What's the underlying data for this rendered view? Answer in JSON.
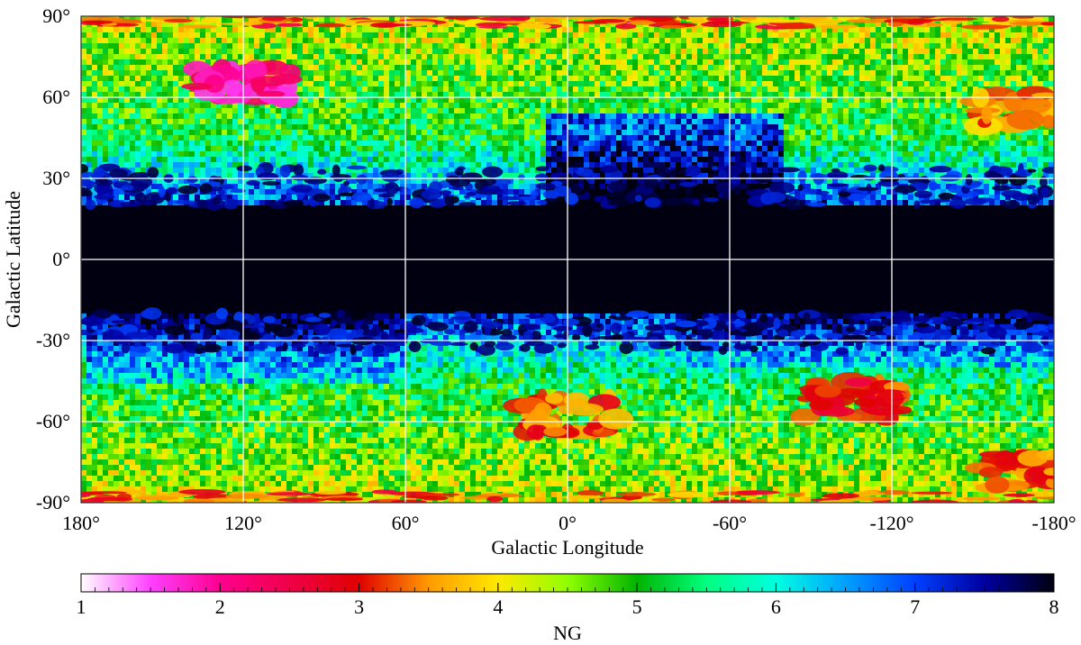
{
  "chart_data": {
    "type": "heatmap",
    "projection": "plate-carree",
    "title": "",
    "xlabel": "Galactic Longitude",
    "ylabel": "Galactic Latitude",
    "xlim": [
      180,
      -180
    ],
    "ylim": [
      -90,
      90
    ],
    "x_ticks": [
      180,
      120,
      60,
      0,
      -60,
      -120,
      -180
    ],
    "x_tick_labels": [
      "180°",
      "120°",
      "60°",
      "0°",
      "-60°",
      "-120°",
      "-180°"
    ],
    "y_ticks": [
      90,
      60,
      30,
      0,
      -30,
      -60,
      -90
    ],
    "y_tick_labels": [
      "90°",
      "60°",
      "30°",
      "0°",
      "-30°",
      "-60°",
      "-90°"
    ],
    "grid": true,
    "grid_color": "#ffffff",
    "colorbar": {
      "label": "NG",
      "range": [
        1,
        8
      ],
      "ticks": [
        1,
        2,
        3,
        4,
        5,
        6,
        7,
        8
      ],
      "tick_labels": [
        "1",
        "2",
        "3",
        "4",
        "5",
        "6",
        "7",
        "8"
      ],
      "placement": "bottom",
      "colormap": [
        {
          "v": 1.0,
          "color": "#ffffff"
        },
        {
          "v": 1.5,
          "color": "#ff40ff"
        },
        {
          "v": 2.0,
          "color": "#ff0090"
        },
        {
          "v": 3.0,
          "color": "#e00000"
        },
        {
          "v": 3.5,
          "color": "#ff9a00"
        },
        {
          "v": 4.0,
          "color": "#ffe800"
        },
        {
          "v": 4.5,
          "color": "#90ff00"
        },
        {
          "v": 5.0,
          "color": "#00b400"
        },
        {
          "v": 5.5,
          "color": "#00ff80"
        },
        {
          "v": 6.0,
          "color": "#00ffe0"
        },
        {
          "v": 6.5,
          "color": "#00a0ff"
        },
        {
          "v": 7.0,
          "color": "#0040ff"
        },
        {
          "v": 7.5,
          "color": "#0000a0"
        },
        {
          "v": 8.0,
          "color": "#000010"
        }
      ]
    },
    "description_values": {
      "galactic_plane_band_lat": [
        -20,
        20
      ],
      "galactic_plane_NG": 8,
      "high_latitude_typical_NG": [
        3,
        5.5
      ],
      "lowest_NG_regions": [
        {
          "l": 120,
          "b": 65,
          "NG": 1.5
        },
        {
          "l": 0,
          "b": -58,
          "NG": 2.8
        },
        {
          "l": -105,
          "b": -52,
          "NG": 2.5
        },
        {
          "l": -170,
          "b": -78,
          "NG": 2.8
        },
        {
          "l": -170,
          "b": 55,
          "NG": 3.0
        }
      ]
    }
  }
}
